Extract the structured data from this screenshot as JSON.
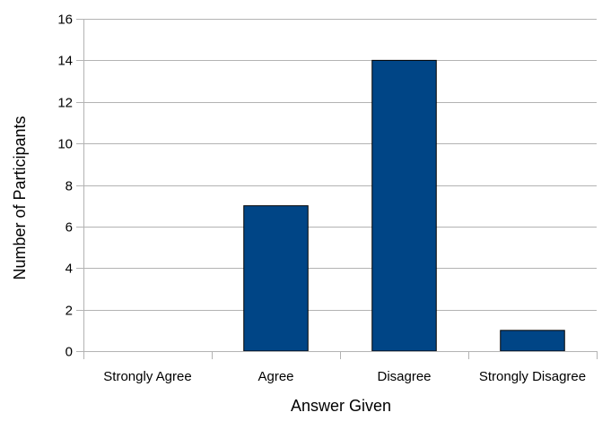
{
  "chart_data": {
    "type": "bar",
    "title": "",
    "xlabel": "Answer Given",
    "ylabel": "Number of Participants",
    "categories": [
      "Strongly Agree",
      "Agree",
      "Disagree",
      "Strongly Disagree"
    ],
    "values": [
      0,
      7,
      14,
      1
    ],
    "ylim": [
      0,
      16
    ],
    "yticks": [
      "0",
      "2",
      "4",
      "6",
      "8",
      "10",
      "12",
      "14",
      "16"
    ],
    "grid": "horizontal",
    "legend": "none",
    "colors": {
      "bar_fill": "#004586",
      "bar_stroke": "#000000",
      "grid": "#b3b3b3",
      "axis": "#b3b3b3"
    }
  }
}
